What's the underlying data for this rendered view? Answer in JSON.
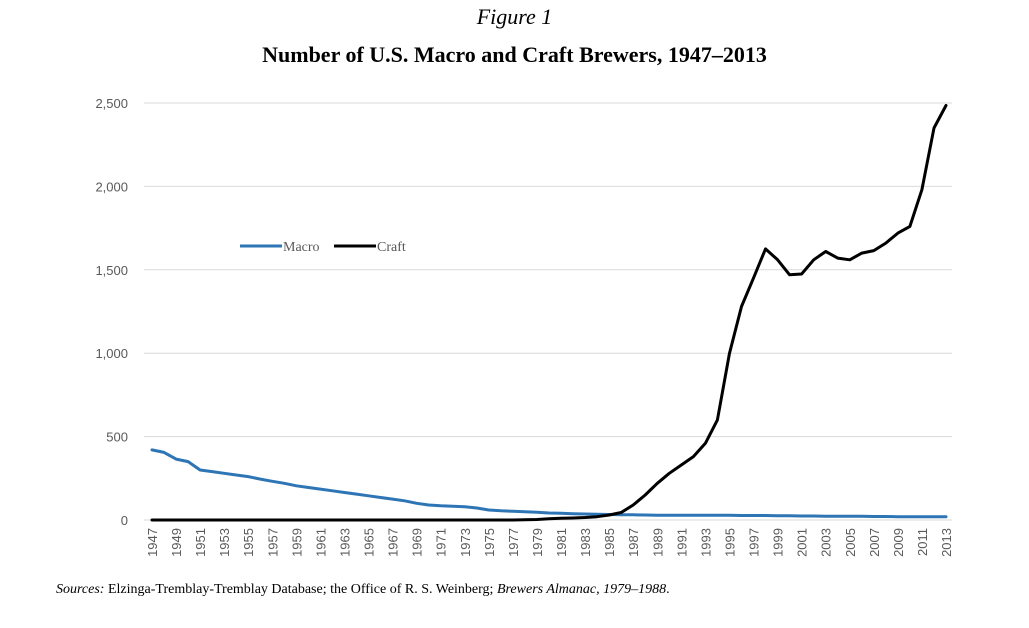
{
  "figure_label": "Figure 1",
  "sources": {
    "label": "Sources:",
    "text": " Elzinga-Tremblay-Tremblay Database; the Office of R. S. Weinberg; ",
    "italic": "Brewers Almanac, 1979–1988",
    "end": "."
  },
  "chart_data": {
    "type": "line",
    "title": "Number of U.S. Macro and Craft Brewers, 1947–2013",
    "xlabel": "",
    "ylabel": "",
    "ylim": [
      0,
      2500
    ],
    "yticks": [
      0,
      500,
      1000,
      1500,
      2000,
      2500
    ],
    "ytick_labels": [
      "0",
      "500",
      "1,000",
      "1,500",
      "2,000",
      "2,500"
    ],
    "x_tick_labels": [
      "1947",
      "1949",
      "1951",
      "1953",
      "1955",
      "1957",
      "1959",
      "1961",
      "1963",
      "1965",
      "1967",
      "1969",
      "1971",
      "1973",
      "1975",
      "1977",
      "1979",
      "1981",
      "1983",
      "1985",
      "1987",
      "1989",
      "1991",
      "1993",
      "1995",
      "1997",
      "1999",
      "2001",
      "2003",
      "2005",
      "2007",
      "2009",
      "2011",
      "2013"
    ],
    "grid": true,
    "legend": "upper-left",
    "x": [
      1947,
      1948,
      1949,
      1950,
      1951,
      1952,
      1953,
      1954,
      1955,
      1956,
      1957,
      1958,
      1959,
      1960,
      1961,
      1962,
      1963,
      1964,
      1965,
      1966,
      1967,
      1968,
      1969,
      1970,
      1971,
      1972,
      1973,
      1974,
      1975,
      1976,
      1977,
      1978,
      1979,
      1980,
      1981,
      1982,
      1983,
      1984,
      1985,
      1986,
      1987,
      1988,
      1989,
      1990,
      1991,
      1992,
      1993,
      1994,
      1995,
      1996,
      1997,
      1998,
      1999,
      2000,
      2001,
      2002,
      2003,
      2004,
      2005,
      2006,
      2007,
      2008,
      2009,
      2010,
      2011,
      2012,
      2013
    ],
    "series": [
      {
        "name": "Macro",
        "color": "#2E75B6",
        "values": [
          420,
          405,
          365,
          350,
          300,
          290,
          280,
          270,
          260,
          245,
          232,
          220,
          205,
          195,
          185,
          175,
          165,
          155,
          145,
          135,
          125,
          115,
          100,
          90,
          85,
          82,
          80,
          72,
          60,
          55,
          52,
          50,
          46,
          42,
          40,
          38,
          36,
          34,
          33,
          32,
          31,
          30,
          29,
          28,
          28,
          28,
          28,
          28,
          28,
          27,
          27,
          27,
          25,
          25,
          24,
          24,
          23,
          23,
          22,
          22,
          21,
          21,
          20,
          20,
          20,
          20,
          20
        ]
      },
      {
        "name": "Craft",
        "color": "#000000",
        "values": [
          0,
          0,
          0,
          0,
          0,
          0,
          0,
          0,
          0,
          0,
          0,
          0,
          0,
          0,
          0,
          0,
          0,
          0,
          0,
          0,
          0,
          0,
          0,
          0,
          0,
          0,
          0,
          0,
          0,
          0,
          0,
          2,
          3,
          8,
          10,
          12,
          15,
          20,
          30,
          45,
          90,
          150,
          220,
          280,
          330,
          380,
          460,
          600,
          1000,
          1280,
          1450,
          1625,
          1560,
          1470,
          1475,
          1560,
          1610,
          1570,
          1560,
          1600,
          1615,
          1660,
          1720,
          1760,
          1980,
          2350,
          2485
        ]
      }
    ]
  }
}
